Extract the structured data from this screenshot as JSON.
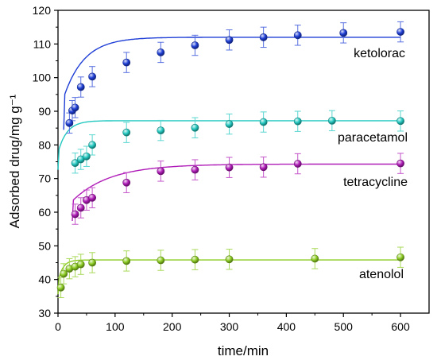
{
  "chart_data": {
    "type": "scatter",
    "xlabel": "time/min",
    "ylabel": "Adsorbed drug/mg g⁻¹",
    "xlim": [
      0,
      650
    ],
    "ylim": [
      30,
      120
    ],
    "xticks": [
      0,
      100,
      200,
      300,
      400,
      500,
      600
    ],
    "yticks": [
      30,
      40,
      50,
      60,
      70,
      80,
      90,
      100,
      110,
      120
    ],
    "grid": false,
    "fit_lines": true,
    "error_bars": true,
    "series": [
      {
        "name": "ketolorac",
        "color": "#1f3fd6",
        "x": [
          20,
          25,
          30,
          40,
          60,
          120,
          180,
          240,
          300,
          360,
          420,
          500,
          600
        ],
        "y": [
          86.5,
          90.2,
          91.1,
          97.2,
          100.3,
          104.5,
          107.5,
          109.6,
          111.2,
          112.0,
          112.6,
          113.3,
          113.6
        ],
        "err": [
          3.0,
          3.0,
          3.0,
          3.0,
          3.0,
          3.0,
          3.0,
          3.0,
          3.0,
          3.0,
          3.0,
          3.0,
          3.0
        ],
        "fit": {
          "qe": 112.0,
          "k": 0.0175,
          "x0": 10
        }
      },
      {
        "name": "paracetamol",
        "color": "#22c8c0",
        "x": [
          30,
          40,
          50,
          60,
          120,
          180,
          240,
          300,
          360,
          420,
          480,
          600
        ],
        "y": [
          74.6,
          75.7,
          76.6,
          80.0,
          83.7,
          84.3,
          85.1,
          86.2,
          86.8,
          87.0,
          87.2,
          87.1
        ],
        "err": [
          3.0,
          3.0,
          3.0,
          3.0,
          3.0,
          3.0,
          3.0,
          3.0,
          3.0,
          3.0,
          3.0,
          3.0
        ],
        "fit": {
          "qe": 87.2,
          "k": 0.04,
          "x0": 0
        }
      },
      {
        "name": "tetracycline",
        "color": "#b01cb8",
        "x": [
          30,
          40,
          50,
          60,
          120,
          180,
          240,
          300,
          360,
          420,
          600
        ],
        "y": [
          59.4,
          61.3,
          63.6,
          64.3,
          68.8,
          72.2,
          72.6,
          73.3,
          73.4,
          74.4,
          74.5
        ],
        "err": [
          3.0,
          3.0,
          3.0,
          3.0,
          3.0,
          3.0,
          3.0,
          3.0,
          3.0,
          3.0,
          3.0
        ],
        "fit": {
          "qe": 74.3,
          "k": 0.0095,
          "x0": 25
        }
      },
      {
        "name": "atenolol",
        "color": "#8ccc22",
        "x": [
          5,
          10,
          20,
          30,
          40,
          60,
          120,
          180,
          240,
          300,
          450,
          600
        ],
        "y": [
          37.6,
          41.7,
          43.2,
          43.8,
          44.5,
          45.0,
          45.5,
          45.7,
          45.9,
          46.0,
          46.2,
          46.6
        ],
        "err": [
          3.0,
          3.0,
          3.0,
          3.0,
          3.0,
          3.0,
          3.0,
          3.0,
          3.0,
          3.0,
          3.0,
          3.0
        ],
        "fit": {
          "qe": 45.8,
          "k": 0.075,
          "x0": 0
        }
      }
    ]
  }
}
